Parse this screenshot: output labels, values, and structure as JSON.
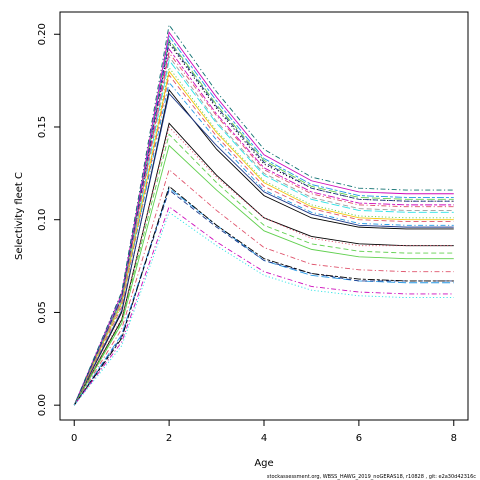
{
  "chart_data": {
    "type": "line",
    "xlabel": "Age",
    "ylabel": "Selectivity fleet C",
    "xlim": [
      -0.3,
      8.3
    ],
    "ylim": [
      -0.008,
      0.212
    ],
    "xticks": [
      0,
      2,
      4,
      6,
      8
    ],
    "yticks": [
      0.0,
      0.05,
      0.1,
      0.15,
      0.2
    ],
    "ytick_labels": [
      "0.00",
      "0.05",
      "0.10",
      "0.15",
      "0.20"
    ],
    "x": [
      0,
      1,
      2,
      3,
      4,
      5,
      6,
      7,
      8
    ],
    "grid": false,
    "legend": "none",
    "series": [
      {
        "color": "#000000",
        "dash": "solid",
        "values": [
          0,
          0.05,
          0.17,
          0.138,
          0.113,
          0.101,
          0.096,
          0.095,
          0.095
        ]
      },
      {
        "color": "#1E3A8A",
        "dash": "solid",
        "values": [
          0,
          0.051,
          0.168,
          0.14,
          0.115,
          0.103,
          0.097,
          0.096,
          0.096
        ]
      },
      {
        "color": "#DF536B",
        "dash": "dash",
        "values": [
          0,
          0.053,
          0.178,
          0.145,
          0.118,
          0.106,
          0.1,
          0.099,
          0.099
        ]
      },
      {
        "color": "#61D04F",
        "dash": "dot",
        "values": [
          0,
          0.054,
          0.182,
          0.148,
          0.121,
          0.108,
          0.102,
          0.101,
          0.101
        ]
      },
      {
        "color": "#2297E6",
        "dash": "dashdot",
        "values": [
          0,
          0.055,
          0.174,
          0.143,
          0.116,
          0.104,
          0.098,
          0.097,
          0.097
        ]
      },
      {
        "color": "#28E2E5",
        "dash": "longdash",
        "values": [
          0,
          0.056,
          0.186,
          0.152,
          0.124,
          0.111,
          0.105,
          0.104,
          0.104
        ]
      },
      {
        "color": "#CD0BBC",
        "dash": "twodash",
        "values": [
          0,
          0.057,
          0.192,
          0.157,
          0.128,
          0.115,
          0.109,
          0.108,
          0.108
        ]
      },
      {
        "color": "#F5C710",
        "dash": "solid",
        "values": [
          0,
          0.055,
          0.18,
          0.147,
          0.12,
          0.107,
          0.101,
          0.1,
          0.1
        ]
      },
      {
        "color": "#9E9E9E",
        "dash": "dash",
        "values": [
          0,
          0.056,
          0.188,
          0.153,
          0.125,
          0.112,
          0.106,
          0.105,
          0.105
        ]
      },
      {
        "color": "#000000",
        "dash": "dot",
        "values": [
          0,
          0.058,
          0.195,
          0.16,
          0.13,
          0.117,
          0.111,
          0.11,
          0.11
        ]
      },
      {
        "color": "#DF536B",
        "dash": "dashdot",
        "values": [
          0,
          0.057,
          0.19,
          0.156,
          0.127,
          0.114,
          0.108,
          0.107,
          0.107
        ]
      },
      {
        "color": "#61D04F",
        "dash": "longdash",
        "values": [
          0,
          0.058,
          0.197,
          0.162,
          0.132,
          0.118,
          0.112,
          0.111,
          0.111
        ]
      },
      {
        "color": "#2297E6",
        "dash": "twodash",
        "values": [
          0,
          0.059,
          0.199,
          0.164,
          0.133,
          0.119,
          0.113,
          0.112,
          0.112
        ]
      },
      {
        "color": "#CD0BBC",
        "dash": "solid",
        "values": [
          0,
          0.06,
          0.201,
          0.166,
          0.135,
          0.121,
          0.115,
          0.114,
          0.114
        ]
      },
      {
        "color": "#0B6E6E",
        "dash": "dashdot",
        "values": [
          0,
          0.061,
          0.205,
          0.169,
          0.138,
          0.123,
          0.117,
          0.116,
          0.116
        ]
      },
      {
        "color": "#1E3A8A",
        "dash": "dash",
        "values": [
          0,
          0.058,
          0.196,
          0.161,
          0.131,
          0.117,
          0.111,
          0.11,
          0.11
        ]
      },
      {
        "color": "#000000",
        "dash": "solid",
        "values": [
          0,
          0.046,
          0.152,
          0.124,
          0.101,
          0.091,
          0.087,
          0.086,
          0.086
        ]
      },
      {
        "color": "#DF536B",
        "dash": "dot",
        "values": [
          0,
          0.047,
          0.15,
          0.123,
          0.101,
          0.09,
          0.086,
          0.086,
          0.086
        ]
      },
      {
        "color": "#61D04F",
        "dash": "solid",
        "values": [
          0,
          0.044,
          0.14,
          0.116,
          0.094,
          0.084,
          0.08,
          0.079,
          0.079
        ]
      },
      {
        "color": "#61D04F",
        "dash": "dash",
        "values": [
          0,
          0.045,
          0.146,
          0.12,
          0.097,
          0.087,
          0.083,
          0.082,
          0.082
        ]
      },
      {
        "color": "#DF536B",
        "dash": "dashdot",
        "values": [
          0,
          0.041,
          0.127,
          0.105,
          0.085,
          0.076,
          0.073,
          0.072,
          0.072
        ]
      },
      {
        "color": "#2297E6",
        "dash": "longdash",
        "values": [
          0,
          0.038,
          0.117,
          0.097,
          0.078,
          0.07,
          0.067,
          0.066,
          0.066
        ]
      },
      {
        "color": "#1E3A8A",
        "dash": "dash",
        "values": [
          0,
          0.037,
          0.116,
          0.096,
          0.078,
          0.071,
          0.067,
          0.067,
          0.067
        ]
      },
      {
        "color": "#000000",
        "dash": "twodash",
        "values": [
          0,
          0.036,
          0.118,
          0.097,
          0.079,
          0.071,
          0.068,
          0.067,
          0.067
        ]
      },
      {
        "color": "#CD0BBC",
        "dash": "dashdot",
        "values": [
          0,
          0.034,
          0.107,
          0.088,
          0.072,
          0.064,
          0.061,
          0.06,
          0.06
        ]
      },
      {
        "color": "#28E2E5",
        "dash": "dot",
        "values": [
          0,
          0.032,
          0.104,
          0.086,
          0.07,
          0.062,
          0.059,
          0.058,
          0.058
        ]
      }
    ]
  },
  "footer_text": "stockassessment.org,  WBSS_HAWG_2019_noGERAS18,  r10828 ,  git:  e2a30d42316c"
}
